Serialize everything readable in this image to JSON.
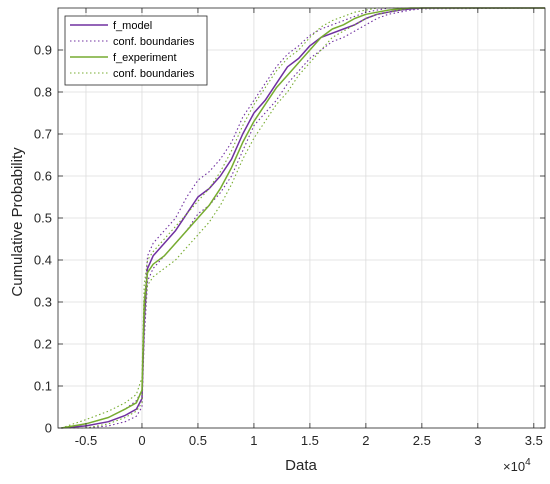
{
  "chart_data": {
    "type": "line",
    "xlabel": "Data",
    "ylabel": "Cumulative Probability",
    "x_exponent_label": "×10",
    "x_exponent_power": "4",
    "x_multiplier": 10000,
    "xlim": [
      -0.75,
      3.6
    ],
    "ylim": [
      0,
      1
    ],
    "x_ticks": [
      -0.5,
      0,
      0.5,
      1,
      1.5,
      2,
      2.5,
      3,
      3.5
    ],
    "x_tick_labels": [
      "-0.5",
      "0",
      "0.5",
      "1",
      "1.5",
      "2",
      "2.5",
      "3",
      "3.5"
    ],
    "y_ticks": [
      0,
      0.1,
      0.2,
      0.3,
      0.4,
      0.5,
      0.6,
      0.7,
      0.8,
      0.9
    ],
    "y_tick_labels": [
      "0",
      "0.1",
      "0.2",
      "0.3",
      "0.4",
      "0.5",
      "0.6",
      "0.7",
      "0.8",
      "0.9"
    ],
    "grid": true,
    "legend_position": "top-left",
    "series": [
      {
        "name": "f_model",
        "style": "solid",
        "color": "#7030a0",
        "x": [
          -0.72,
          -0.5,
          -0.3,
          -0.15,
          -0.05,
          0,
          0.02,
          0.05,
          0.1,
          0.2,
          0.3,
          0.4,
          0.5,
          0.6,
          0.7,
          0.8,
          0.9,
          1.0,
          1.1,
          1.2,
          1.3,
          1.4,
          1.5,
          1.6,
          1.7,
          1.8,
          1.9,
          2.0,
          2.1,
          2.2,
          2.3,
          2.4,
          2.5,
          3.6
        ],
        "y": [
          0.0,
          0.005,
          0.015,
          0.03,
          0.045,
          0.07,
          0.25,
          0.38,
          0.41,
          0.44,
          0.47,
          0.51,
          0.55,
          0.57,
          0.6,
          0.64,
          0.7,
          0.75,
          0.78,
          0.82,
          0.86,
          0.88,
          0.91,
          0.93,
          0.94,
          0.95,
          0.96,
          0.975,
          0.985,
          0.99,
          0.995,
          0.998,
          1.0,
          1.0
        ]
      },
      {
        "name": "conf. boundaries",
        "style": "dotted",
        "color": "#7030a0",
        "x": [
          -0.72,
          -0.5,
          -0.3,
          -0.15,
          -0.05,
          0,
          0.02,
          0.05,
          0.1,
          0.2,
          0.3,
          0.4,
          0.5,
          0.6,
          0.7,
          0.8,
          0.9,
          1.0,
          1.1,
          1.2,
          1.3,
          1.4,
          1.5,
          1.6,
          1.7,
          1.8,
          1.9,
          2.0,
          2.1,
          2.2,
          2.3,
          2.4,
          2.5,
          3.6
        ],
        "y": [
          0.0,
          0.01,
          0.025,
          0.045,
          0.065,
          0.09,
          0.29,
          0.41,
          0.44,
          0.47,
          0.5,
          0.55,
          0.59,
          0.61,
          0.64,
          0.68,
          0.74,
          0.78,
          0.82,
          0.86,
          0.89,
          0.91,
          0.935,
          0.95,
          0.96,
          0.97,
          0.98,
          0.99,
          0.995,
          1.0,
          1.0,
          1.0,
          1.0,
          1.0
        ]
      },
      {
        "name": "conf. boundaries",
        "style": "dotted",
        "color": "#7030a0",
        "x": [
          -0.72,
          -0.5,
          -0.3,
          -0.15,
          -0.05,
          0,
          0.02,
          0.05,
          0.1,
          0.2,
          0.3,
          0.4,
          0.5,
          0.6,
          0.7,
          0.8,
          0.9,
          1.0,
          1.1,
          1.2,
          1.3,
          1.4,
          1.5,
          1.6,
          1.7,
          1.8,
          1.9,
          2.0,
          2.1,
          2.2,
          2.3,
          2.4,
          2.5,
          3.6
        ],
        "y": [
          0.0,
          0.0,
          0.005,
          0.015,
          0.028,
          0.05,
          0.21,
          0.35,
          0.38,
          0.41,
          0.44,
          0.47,
          0.51,
          0.53,
          0.56,
          0.6,
          0.66,
          0.72,
          0.75,
          0.78,
          0.82,
          0.85,
          0.88,
          0.9,
          0.92,
          0.93,
          0.945,
          0.96,
          0.975,
          0.985,
          0.99,
          0.995,
          0.998,
          1.0
        ]
      },
      {
        "name": "f_experiment",
        "style": "solid",
        "color": "#77ac30",
        "x": [
          -0.72,
          -0.5,
          -0.3,
          -0.15,
          -0.05,
          0,
          0.02,
          0.05,
          0.1,
          0.2,
          0.3,
          0.4,
          0.5,
          0.6,
          0.7,
          0.8,
          0.9,
          1.0,
          1.1,
          1.2,
          1.3,
          1.4,
          1.5,
          1.6,
          1.7,
          1.8,
          1.9,
          2.0,
          2.1,
          2.2,
          2.3,
          2.4,
          2.5,
          3.6
        ],
        "y": [
          0.0,
          0.01,
          0.025,
          0.045,
          0.06,
          0.09,
          0.3,
          0.37,
          0.39,
          0.41,
          0.44,
          0.47,
          0.5,
          0.53,
          0.57,
          0.62,
          0.68,
          0.73,
          0.77,
          0.81,
          0.84,
          0.87,
          0.9,
          0.93,
          0.95,
          0.96,
          0.975,
          0.985,
          0.99,
          0.995,
          0.998,
          1.0,
          1.0,
          1.0
        ]
      },
      {
        "name": "conf. boundaries",
        "style": "dotted",
        "color": "#77ac30",
        "x": [
          -0.72,
          -0.5,
          -0.3,
          -0.15,
          -0.05,
          0,
          0.02,
          0.05,
          0.1,
          0.2,
          0.3,
          0.4,
          0.5,
          0.6,
          0.7,
          0.8,
          0.9,
          1.0,
          1.1,
          1.2,
          1.3,
          1.4,
          1.5,
          1.6,
          1.7,
          1.8,
          1.9,
          2.0,
          2.1,
          2.2,
          2.3,
          2.4,
          2.5,
          3.6
        ],
        "y": [
          0.0,
          0.02,
          0.04,
          0.06,
          0.08,
          0.12,
          0.34,
          0.4,
          0.42,
          0.45,
          0.48,
          0.51,
          0.54,
          0.57,
          0.61,
          0.66,
          0.72,
          0.77,
          0.81,
          0.85,
          0.88,
          0.9,
          0.93,
          0.955,
          0.97,
          0.98,
          0.99,
          0.995,
          1.0,
          1.0,
          1.0,
          1.0,
          1.0,
          1.0
        ]
      },
      {
        "name": "conf. boundaries",
        "style": "dotted",
        "color": "#77ac30",
        "x": [
          -0.72,
          -0.5,
          -0.3,
          -0.15,
          -0.05,
          0,
          0.02,
          0.05,
          0.1,
          0.2,
          0.3,
          0.4,
          0.5,
          0.6,
          0.7,
          0.8,
          0.9,
          1.0,
          1.1,
          1.2,
          1.3,
          1.4,
          1.5,
          1.6,
          1.7,
          1.8,
          1.9,
          2.0,
          2.1,
          2.2,
          2.3,
          2.4,
          2.5,
          3.6
        ],
        "y": [
          0.0,
          0.0,
          0.01,
          0.025,
          0.04,
          0.06,
          0.26,
          0.34,
          0.36,
          0.38,
          0.4,
          0.43,
          0.46,
          0.49,
          0.53,
          0.58,
          0.64,
          0.69,
          0.73,
          0.77,
          0.8,
          0.84,
          0.87,
          0.9,
          0.93,
          0.945,
          0.96,
          0.975,
          0.985,
          0.99,
          0.995,
          1.0,
          1.0,
          1.0
        ]
      }
    ],
    "legend": [
      {
        "label": "f_model",
        "style": "solid",
        "color": "#7030a0"
      },
      {
        "label": "conf. boundaries",
        "style": "dotted",
        "color": "#7030a0"
      },
      {
        "label": "f_experiment",
        "style": "solid",
        "color": "#77ac30"
      },
      {
        "label": "conf. boundaries",
        "style": "dotted",
        "color": "#77ac30"
      }
    ]
  }
}
